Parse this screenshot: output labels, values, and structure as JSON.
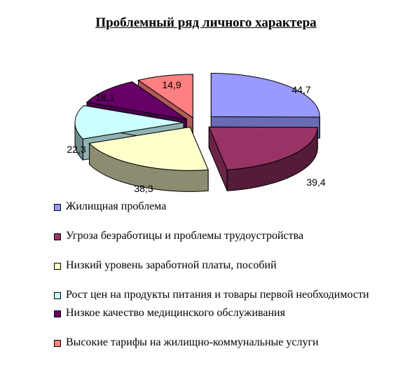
{
  "chart_data": {
    "type": "pie",
    "title": "Проблемный ряд личного характера",
    "categories": [
      "Жилищная проблема",
      "Угроза безработицы и проблемы трудоустройства",
      "Низкий уровень заработной платы, пособий",
      "Рост цен на продукты питания и товары первой необходимости",
      "Низкое качество медицинского обслуживания",
      "Высокие тарифы на жилищно-коммунальные услуги"
    ],
    "values": [
      44.7,
      39.4,
      38.3,
      22.3,
      18.1,
      14.9
    ],
    "value_labels": [
      "44,7",
      "39,4",
      "38,3",
      "22,3",
      "18,1",
      "14,9"
    ],
    "colors": [
      "#9999ff",
      "#993366",
      "#ffffcc",
      "#ccffff",
      "#660066",
      "#ff8080"
    ],
    "legend_position": "bottom",
    "style": "3d-exploded"
  },
  "legend": {
    "items": [
      {
        "label": "Жилищная проблема",
        "color": "#9999ff"
      },
      {
        "label": "Угроза безработицы и проблемы трудоустройства",
        "color": "#993366"
      },
      {
        "label": "Низкий уровень заработной платы, пособий",
        "color": "#ffffcc"
      },
      {
        "label": "Рост цен на продукты питания и товары первой необходимости",
        "color": "#ccffff"
      },
      {
        "label": "Низкое качество медицинского обслуживания",
        "color": "#660066"
      },
      {
        "label": "Высокие тарифы на жилищно-коммунальные услуги",
        "color": "#ff8080"
      }
    ]
  }
}
